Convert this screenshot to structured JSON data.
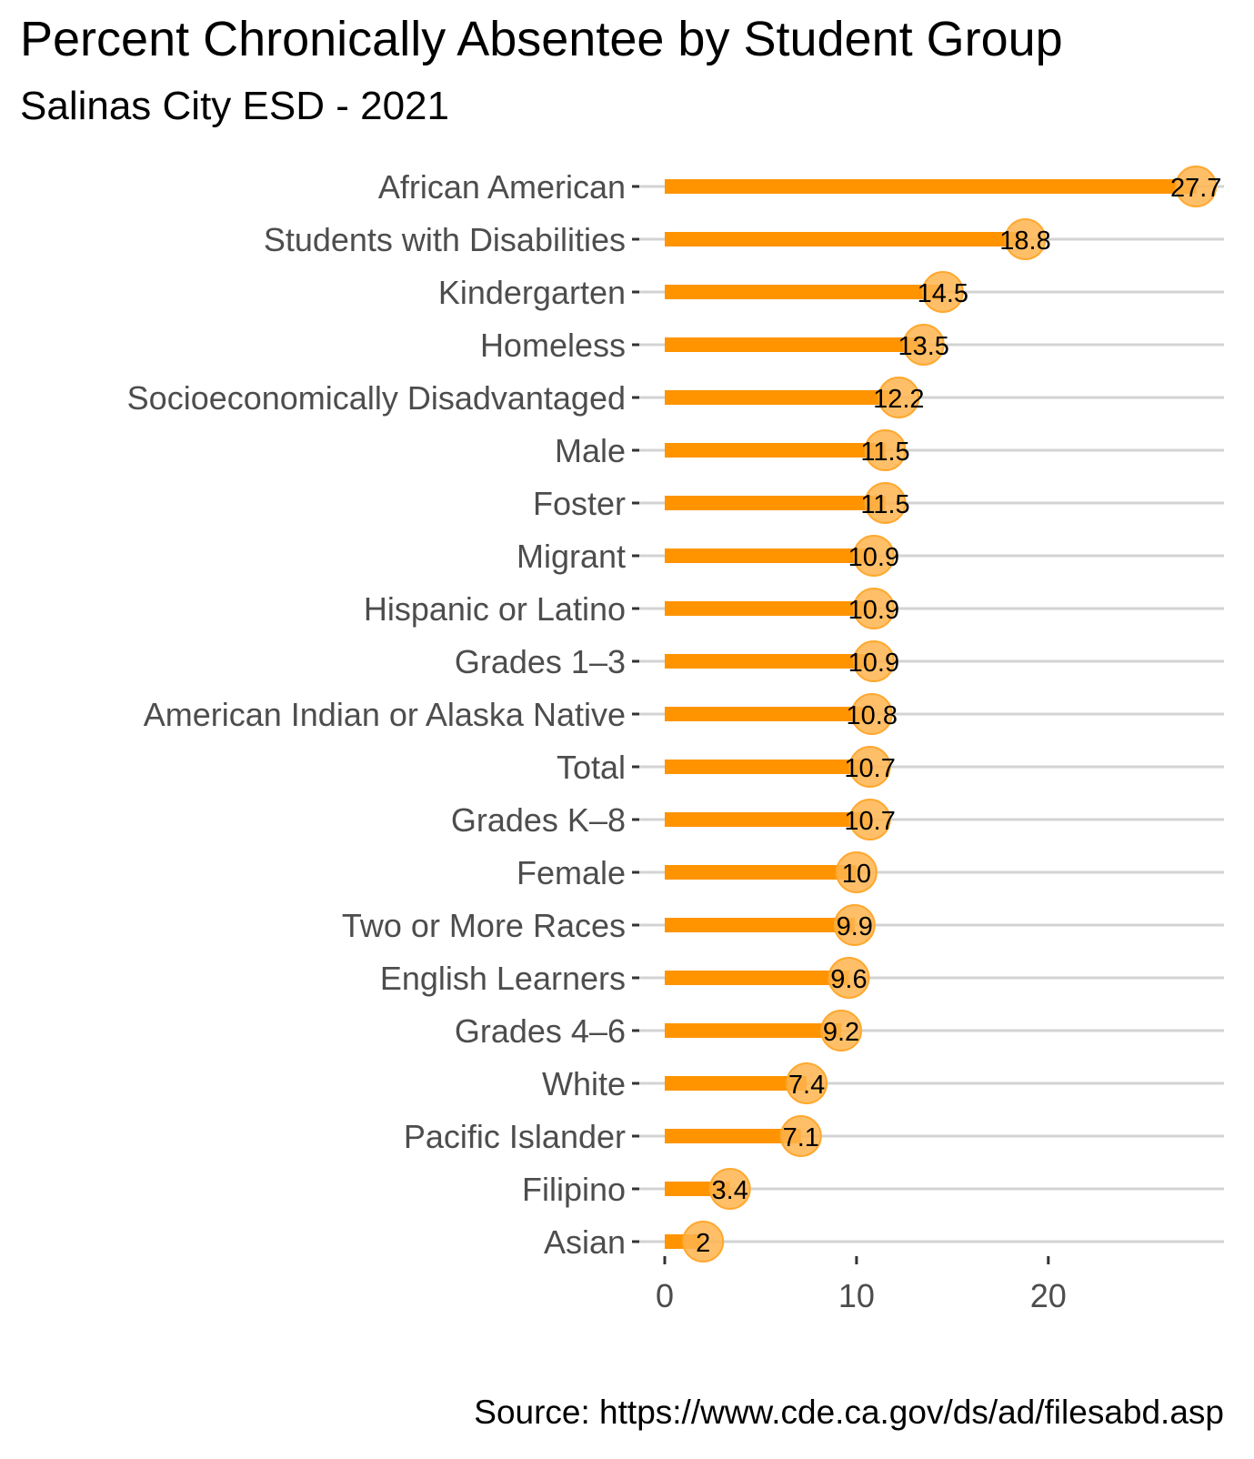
{
  "chart_data": {
    "type": "bar",
    "title": "Percent Chronically Absentee by Student Group",
    "subtitle": "Salinas City ESD - 2021",
    "caption": "Source: https://www.cde.ca.gov/ds/ad/filesabd.asp",
    "xlabel": "",
    "ylabel": "",
    "orientation": "horizontal",
    "categories": [
      "African American",
      "Students with Disabilities",
      "Kindergarten",
      "Homeless",
      "Socioeconomically Disadvantaged",
      "Male",
      "Foster",
      "Migrant",
      "Hispanic or Latino",
      "Grades 1–3",
      "American Indian or Alaska Native",
      "Total",
      "Grades K–8",
      "Female",
      "Two or More Races",
      "English Learners",
      "Grades 4–6",
      "White",
      "Pacific Islander",
      "Filipino",
      "Asian"
    ],
    "values": [
      27.7,
      18.8,
      14.5,
      13.5,
      12.2,
      11.5,
      11.5,
      10.9,
      10.9,
      10.9,
      10.8,
      10.7,
      10.7,
      10,
      9.9,
      9.6,
      9.2,
      7.4,
      7.1,
      3.4,
      2
    ],
    "value_labels": [
      "27.7",
      "18.8",
      "14.5",
      "13.5",
      "12.2",
      "11.5",
      "11.5",
      "10.9",
      "10.9",
      "10.9",
      "10.8",
      "10.7",
      "10.7",
      "10",
      "9.9",
      "9.6",
      "9.2",
      "7.4",
      "7.1",
      "3.4",
      "2"
    ],
    "xticks": [
      0,
      10,
      20
    ],
    "xtick_labels": [
      "0",
      "10",
      "20"
    ],
    "xlim": [
      0,
      29
    ],
    "grid": "horizontal-major",
    "legend": "none",
    "colors": {
      "bar": "#FF9400",
      "point": "#FFB44D",
      "point_stroke": "#FFA82E",
      "grid": "#D3D3D3",
      "axis_text": "#4D4D4D"
    }
  }
}
